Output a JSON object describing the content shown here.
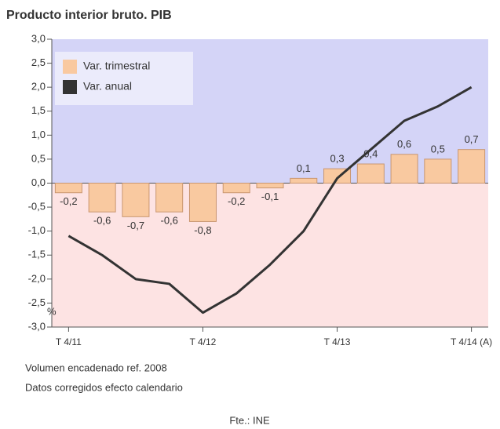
{
  "chart_data": {
    "type": "bar",
    "title": "Producto interior bruto. PIB",
    "categories": [
      "T 4/11",
      null,
      null,
      null,
      "T 4/12",
      null,
      null,
      null,
      "T 4/13",
      null,
      null,
      null,
      "T 4/14 (A)"
    ],
    "series": [
      {
        "name": "Var. trimestral",
        "type": "bar",
        "color": "#f9c9a0",
        "values": [
          -0.2,
          -0.6,
          -0.7,
          -0.6,
          -0.8,
          -0.2,
          -0.1,
          0.1,
          0.3,
          0.4,
          0.6,
          0.5,
          0.7
        ],
        "value_labels": [
          "-0,2",
          "-0,6",
          "-0,7",
          "-0,6",
          "-0,8",
          "-0,2",
          "-0,1",
          "0,1",
          "0,3",
          "0,4",
          "0,6",
          "0,5",
          "0,7"
        ]
      },
      {
        "name": "Var. anual",
        "type": "line",
        "color": "#333333",
        "values": [
          -1.1,
          -1.5,
          -2.0,
          -2.1,
          -2.7,
          -2.3,
          -1.7,
          -1.0,
          0.1,
          0.7,
          1.3,
          1.6,
          2.0
        ]
      }
    ],
    "ylim": [
      -3,
      3
    ],
    "yticks": [
      {
        "value": 3,
        "label": "3,0"
      },
      {
        "value": 2.5,
        "label": "2,5"
      },
      {
        "value": 2,
        "label": "2,0"
      },
      {
        "value": 1.5,
        "label": "1,5"
      },
      {
        "value": 1,
        "label": "1,0"
      },
      {
        "value": 0.5,
        "label": "0,5"
      },
      {
        "value": 0,
        "label": "0,0"
      },
      {
        "value": -0.5,
        "label": "-0,5"
      },
      {
        "value": -1,
        "label": "-1,0"
      },
      {
        "value": -1.5,
        "label": "-1,5"
      },
      {
        "value": -2,
        "label": "-2,0"
      },
      {
        "value": -2.5,
        "label": "-2,5"
      },
      {
        "value": -3,
        "label": "-3,0"
      }
    ],
    "y_label": "%",
    "legend": "top-left",
    "notes": [
      "Volumen encadenado ref. 2008",
      "Datos corregidos efecto calendario"
    ],
    "source": "Fte.: INE"
  }
}
